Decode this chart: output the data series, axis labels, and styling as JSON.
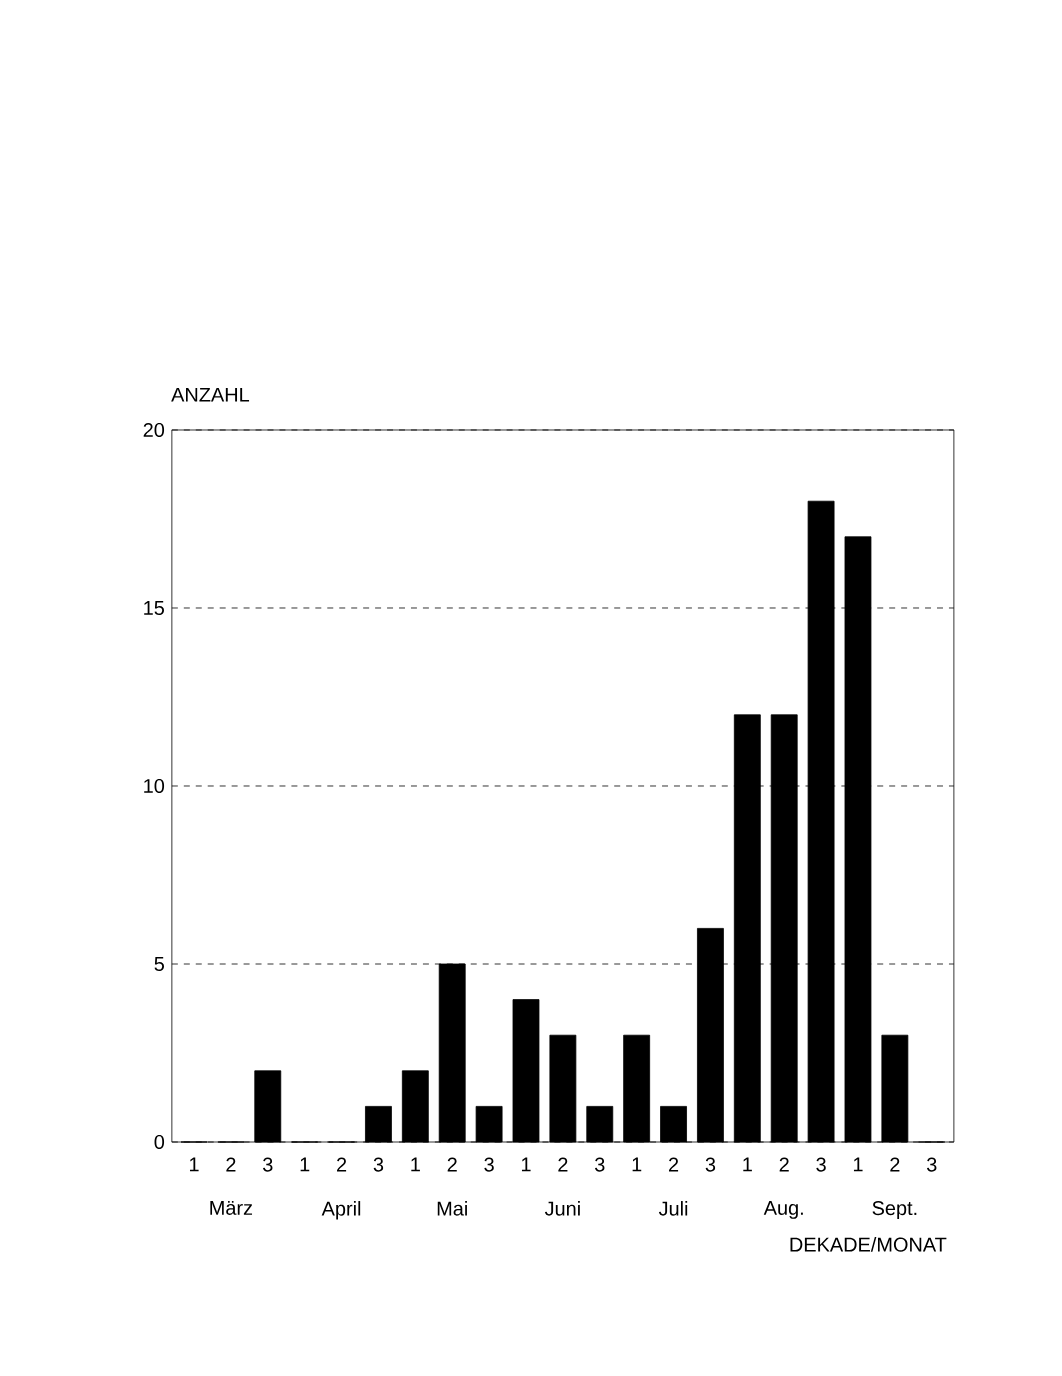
{
  "chart_data": {
    "type": "bar",
    "categories": [
      "1",
      "2",
      "3",
      "1",
      "2",
      "3",
      "1",
      "2",
      "3",
      "1",
      "2",
      "3",
      "1",
      "2",
      "3",
      "1",
      "2",
      "3",
      "1",
      "2",
      "3"
    ],
    "values": [
      0,
      0,
      2,
      0,
      0,
      1,
      2,
      5,
      1,
      4,
      3,
      1,
      3,
      1,
      6,
      12,
      12,
      18,
      17,
      3,
      0
    ],
    "color": "#000000",
    "ylabel": "ANZAHL",
    "xlabel": "DEKADE/MONAT",
    "annotations": [
      "März",
      "April",
      "Mai",
      "Juni",
      "Juli",
      "Aug.",
      "Sept."
    ],
    "ylim": [
      0,
      20
    ],
    "yticks": [
      0,
      5,
      10,
      15,
      20
    ],
    "grid": "y"
  }
}
